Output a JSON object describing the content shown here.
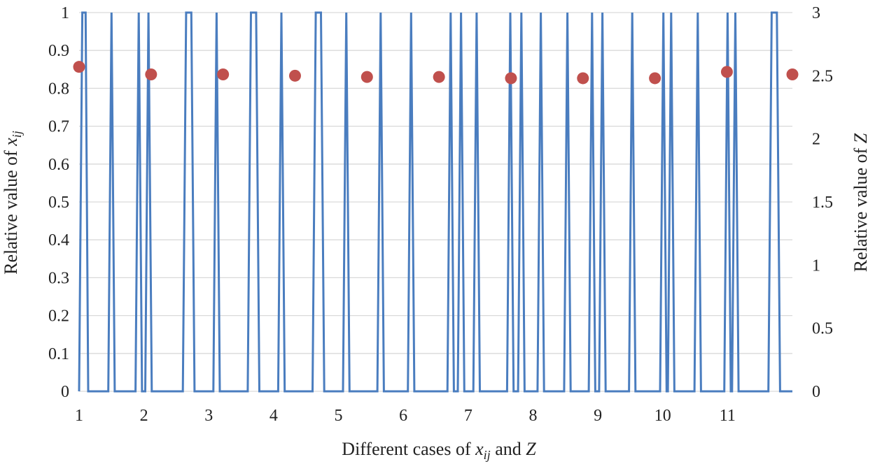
{
  "chart_data": {
    "type": "line+scatter",
    "xlabel": {
      "main": "Different cases of ",
      "var": "x",
      "sub": "ij",
      "and": " and ",
      "z": "Z"
    },
    "ylabel_left": {
      "main": "Relative value of ",
      "var": "x",
      "sub": "ij"
    },
    "ylabel_right": {
      "main": "Relative value of ",
      "var": "Z"
    },
    "x_ticks": [
      "1",
      "2",
      "3",
      "4",
      "5",
      "6",
      "7",
      "8",
      "9",
      "10",
      "11"
    ],
    "x_range": [
      1,
      12
    ],
    "y_left_ticks": [
      "0",
      "0.1",
      "0.2",
      "0.3",
      "0.4",
      "0.5",
      "0.6",
      "0.7",
      "0.8",
      "0.9",
      "1"
    ],
    "y_left_range": [
      0,
      1
    ],
    "y_right_ticks": [
      "0",
      "0.5",
      "1",
      "1.5",
      "2",
      "2.5",
      "3"
    ],
    "y_right_range": [
      0,
      3
    ],
    "grid": true,
    "series": [
      {
        "name": "x_ij",
        "kind": "line",
        "color": "#4a7dbf",
        "points": [
          [
            1.0,
            0
          ],
          [
            1.05,
            1
          ],
          [
            1.1,
            1
          ],
          [
            1.14,
            0
          ],
          [
            1.45,
            0
          ],
          [
            1.5,
            1
          ],
          [
            1.55,
            0
          ],
          [
            1.87,
            0
          ],
          [
            1.92,
            1
          ],
          [
            1.97,
            0
          ],
          [
            2.02,
            0
          ],
          [
            2.07,
            1
          ],
          [
            2.12,
            0
          ],
          [
            2.6,
            0
          ],
          [
            2.65,
            1
          ],
          [
            2.73,
            1
          ],
          [
            2.78,
            0
          ],
          [
            3.07,
            0
          ],
          [
            3.12,
            1
          ],
          [
            3.17,
            0
          ],
          [
            3.6,
            0
          ],
          [
            3.65,
            1
          ],
          [
            3.73,
            1
          ],
          [
            3.78,
            0
          ],
          [
            4.07,
            0
          ],
          [
            4.12,
            1
          ],
          [
            4.17,
            0
          ],
          [
            4.6,
            0
          ],
          [
            4.65,
            1
          ],
          [
            4.73,
            1
          ],
          [
            4.78,
            0
          ],
          [
            5.07,
            0
          ],
          [
            5.12,
            1
          ],
          [
            5.17,
            0
          ],
          [
            5.6,
            0
          ],
          [
            5.65,
            1
          ],
          [
            5.7,
            0
          ],
          [
            6.07,
            0
          ],
          [
            6.12,
            1
          ],
          [
            6.17,
            0
          ],
          [
            6.68,
            0
          ],
          [
            6.73,
            1
          ],
          [
            6.78,
            0
          ],
          [
            6.84,
            0
          ],
          [
            6.89,
            1
          ],
          [
            6.94,
            0
          ],
          [
            7.08,
            0
          ],
          [
            7.13,
            1
          ],
          [
            7.18,
            0
          ],
          [
            7.6,
            0
          ],
          [
            7.65,
            1
          ],
          [
            7.7,
            0
          ],
          [
            7.77,
            0
          ],
          [
            7.82,
            1
          ],
          [
            7.87,
            0
          ],
          [
            8.07,
            0
          ],
          [
            8.12,
            1
          ],
          [
            8.17,
            0
          ],
          [
            8.48,
            0
          ],
          [
            8.53,
            1
          ],
          [
            8.58,
            0
          ],
          [
            8.86,
            0
          ],
          [
            8.91,
            1
          ],
          [
            8.96,
            0
          ],
          [
            9.02,
            0
          ],
          [
            9.07,
            1
          ],
          [
            9.12,
            0
          ],
          [
            9.48,
            0
          ],
          [
            9.53,
            1
          ],
          [
            9.58,
            0
          ],
          [
            9.96,
            0
          ],
          [
            10.01,
            1
          ],
          [
            10.06,
            0
          ],
          [
            10.08,
            0
          ],
          [
            10.13,
            1
          ],
          [
            10.18,
            0
          ],
          [
            10.49,
            0
          ],
          [
            10.54,
            1
          ],
          [
            10.59,
            0
          ],
          [
            10.95,
            0
          ],
          [
            11.0,
            1
          ],
          [
            11.05,
            0
          ],
          [
            11.07,
            0
          ],
          [
            11.12,
            1
          ],
          [
            11.17,
            0
          ],
          [
            11.63,
            0
          ],
          [
            11.68,
            1
          ],
          [
            11.76,
            1
          ],
          [
            11.81,
            0
          ],
          [
            12.0,
            0
          ]
        ]
      },
      {
        "name": "Z",
        "kind": "scatter",
        "axis": "right",
        "color": "#c0504d",
        "points": [
          [
            1.0,
            2.57
          ],
          [
            2.11,
            2.51
          ],
          [
            3.22,
            2.51
          ],
          [
            4.33,
            2.5
          ],
          [
            5.44,
            2.49
          ],
          [
            6.55,
            2.49
          ],
          [
            7.66,
            2.48
          ],
          [
            8.77,
            2.48
          ],
          [
            9.88,
            2.48
          ],
          [
            10.99,
            2.53
          ],
          [
            12.0,
            2.51
          ]
        ]
      }
    ]
  }
}
